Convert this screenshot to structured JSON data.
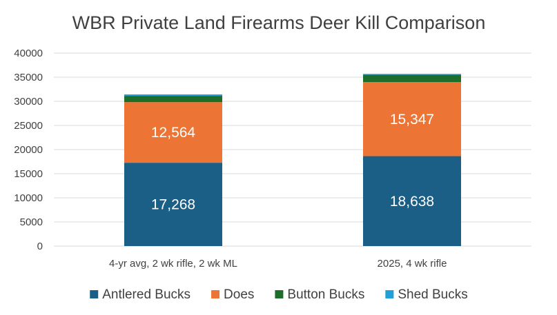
{
  "chart_data": {
    "type": "bar",
    "stacked": true,
    "title": "WBR Private Land Firearms Deer Kill Comparison",
    "xlabel": "",
    "ylabel": "",
    "categories": [
      "4-yr avg, 2 wk rifle, 2 wk ML",
      "2025, 4 wk rifle"
    ],
    "ylim": [
      0,
      40000
    ],
    "yticks": [
      0,
      5000,
      10000,
      15000,
      20000,
      25000,
      30000,
      35000,
      40000
    ],
    "grid": true,
    "legend_position": "bottom",
    "series": [
      {
        "name": "Antlered Bucks",
        "color": "#1b5e86",
        "values": [
          17268,
          18638
        ],
        "data_labels": [
          "17,268",
          "18,638"
        ]
      },
      {
        "name": "Does",
        "color": "#ec7535",
        "values": [
          12564,
          15347
        ],
        "data_labels": [
          "12,564",
          "15,347"
        ]
      },
      {
        "name": "Button Bucks",
        "color": "#1e6e2b",
        "values": [
          1300,
          1500
        ]
      },
      {
        "name": "Shed Bucks",
        "color": "#1fa0d8",
        "values": [
          300,
          200
        ]
      }
    ]
  }
}
